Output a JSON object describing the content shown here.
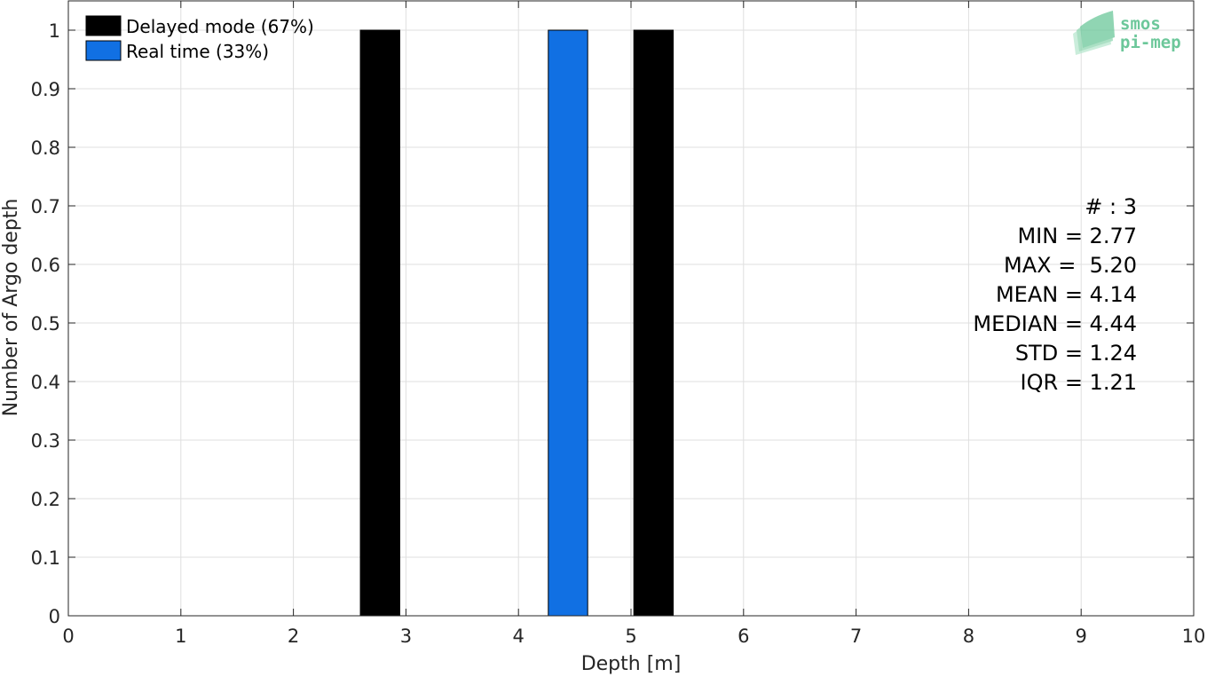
{
  "chart_data": {
    "type": "bar",
    "xlabel": "Depth [m]",
    "ylabel": "Number of Argo depth",
    "xlim": [
      0,
      10
    ],
    "ylim": [
      0,
      1
    ],
    "x_ticks": [
      "0",
      "1",
      "2",
      "3",
      "4",
      "5",
      "6",
      "7",
      "8",
      "9",
      "10"
    ],
    "y_ticks": [
      "0",
      "0.1",
      "0.2",
      "0.3",
      "0.4",
      "0.5",
      "0.6",
      "0.7",
      "0.8",
      "0.9",
      "1"
    ],
    "grid": true,
    "bin_width": 0.35,
    "series": [
      {
        "name": "Delayed mode (67%)",
        "color": "#000000",
        "x": [
          2.77,
          5.2
        ],
        "values": [
          1,
          1
        ]
      },
      {
        "name": "Real time (33%)",
        "color": "#1170e3",
        "x": [
          4.44
        ],
        "values": [
          1
        ]
      }
    ],
    "legend": {
      "placement": "top-left"
    },
    "annotations": [
      "# : 3",
      "MIN = 2.77",
      "MAX =  5.20",
      "MEAN = 4.14",
      "MEDIAN = 4.44",
      "STD = 1.24",
      "IQR = 1.21"
    ]
  },
  "logo": {
    "line1": "smos",
    "line2": "pi-mep",
    "color": "#6cc79a"
  }
}
